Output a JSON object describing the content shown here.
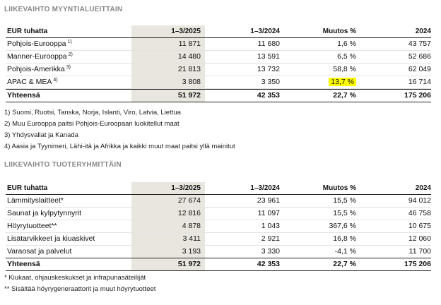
{
  "region": {
    "title": "LIIKEVAIHTO MYYNTIALUEITTAIN",
    "headers": [
      "EUR tuhatta",
      "1–3/2025",
      "1–3/2024",
      "Muutos %",
      "2024"
    ],
    "rows": [
      {
        "label": "Pohjois-Eurooppa",
        "sup": "1)",
        "v2025": "11 871",
        "v2024": "11 680",
        "change": "1,6 %",
        "full2024": "43 757"
      },
      {
        "label": "Manner-Eurooppa",
        "sup": "2)",
        "v2025": "14 480",
        "v2024": "13 591",
        "change": "6,5 %",
        "full2024": "52 686"
      },
      {
        "label": "Pohjois-Amerikka",
        "sup": "3)",
        "v2025": "21 813",
        "v2024": "13 732",
        "change": "58,8 %",
        "full2024": "62 049"
      },
      {
        "label": "APAC & MEA",
        "sup": "4)",
        "v2025": "3 808",
        "v2024": "3 350",
        "change": "13,7 %",
        "full2024": "16 714"
      }
    ],
    "total": {
      "label": "Yhteensä",
      "v2025": "51 972",
      "v2024": "42 353",
      "change": "22,7 %",
      "full2024": "175 206"
    },
    "notes": [
      "1) Suomi, Ruotsi, Tanska, Norja, Islanti, Viro, Latvia, Liettua",
      "2) Muu Eurooppa paitsi Pohjois-Euroopaan luokitellut maat",
      "3) Yhdysvallat ja Kanada",
      "4) Aasia ja Tyynimeri, Lähi-itä ja Afrikka ja kaikki muut maat paitsi yllä mainitut"
    ]
  },
  "product": {
    "title": "LIIKEVAIHTO TUOTERYHMITTÄIN",
    "headers": [
      "EUR tuhatta",
      "1–3/2025",
      "1–3/2024",
      "Muutos %",
      "2024"
    ],
    "rows": [
      {
        "label": "Lämmityslaitteet*",
        "v2025": "27 674",
        "v2024": "23 961",
        "change": "15,5 %",
        "full2024": "94 012"
      },
      {
        "label": "Saunat ja kylpytynnyrit",
        "v2025": "12 816",
        "v2024": "11 097",
        "change": "15,5 %",
        "full2024": "46 758"
      },
      {
        "label": "Höyrytuotteet**",
        "v2025": "4 878",
        "v2024": "1 043",
        "change": "367,6 %",
        "full2024": "10 675"
      },
      {
        "label": "Lisätarvikkeet ja kiuaskivet",
        "v2025": "3 411",
        "v2024": "2 921",
        "change": "16,8 %",
        "full2024": "12 060"
      },
      {
        "label": "Varaosat ja palvelut",
        "v2025": "3 193",
        "v2024": "3 330",
        "change": "-4,1 %",
        "full2024": "11 700"
      }
    ],
    "total": {
      "label": "Yhteensä",
      "v2025": "51 972",
      "v2024": "42 353",
      "change": "22,7 %",
      "full2024": "175 206"
    },
    "notes": [
      "* Kiukaat, ohjauskeskukset ja infrapunasäteilijät",
      "** Sisältää höyrygeneraattorit ja muut höyrytuotteet"
    ]
  },
  "highlight_color": "#ffff00",
  "shade_color": "#e9e6df"
}
